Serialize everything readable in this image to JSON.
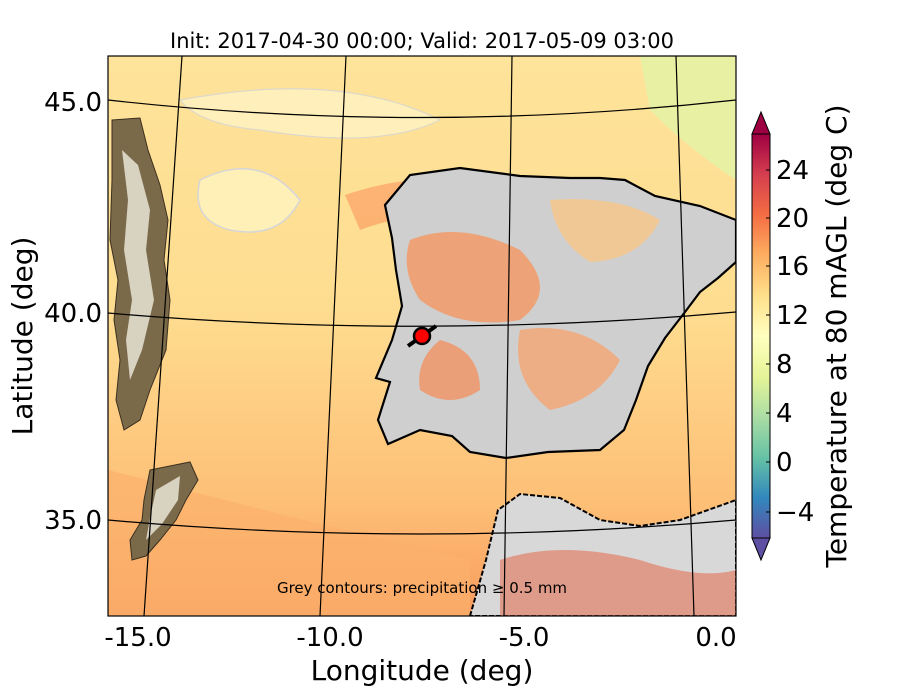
{
  "title": "Init: 2017-04-30 00:00; Valid: 2017-05-09 03:00",
  "axes": {
    "xlabel": "Longitude (deg)",
    "ylabel": "Latitude (deg)",
    "x_ticks": [
      "-15.0",
      "-10.0",
      "-5.0",
      "0.0"
    ],
    "y_ticks": [
      "45.0",
      "40.0",
      "35.0"
    ]
  },
  "annotation": "Grey contours: precipitation ≥ 0.5 mm",
  "colorbar": {
    "label": "Temperature at 80 mAGL (deg C)",
    "ticks": [
      "24",
      "20",
      "16",
      "12",
      "8",
      "4",
      "0",
      "−4"
    ],
    "colors": [
      "#5e4fa2",
      "#3288bd",
      "#66c2a5",
      "#abdda4",
      "#e6f598",
      "#ffffbf",
      "#fee08b",
      "#fdae61",
      "#f46d43",
      "#d53e4f",
      "#9e0142"
    ]
  },
  "colors": {
    "land_gray": "#cfcfcf",
    "sea_warm": "#fdd08a",
    "coast": "#000000",
    "marker": "#ff0000"
  }
}
